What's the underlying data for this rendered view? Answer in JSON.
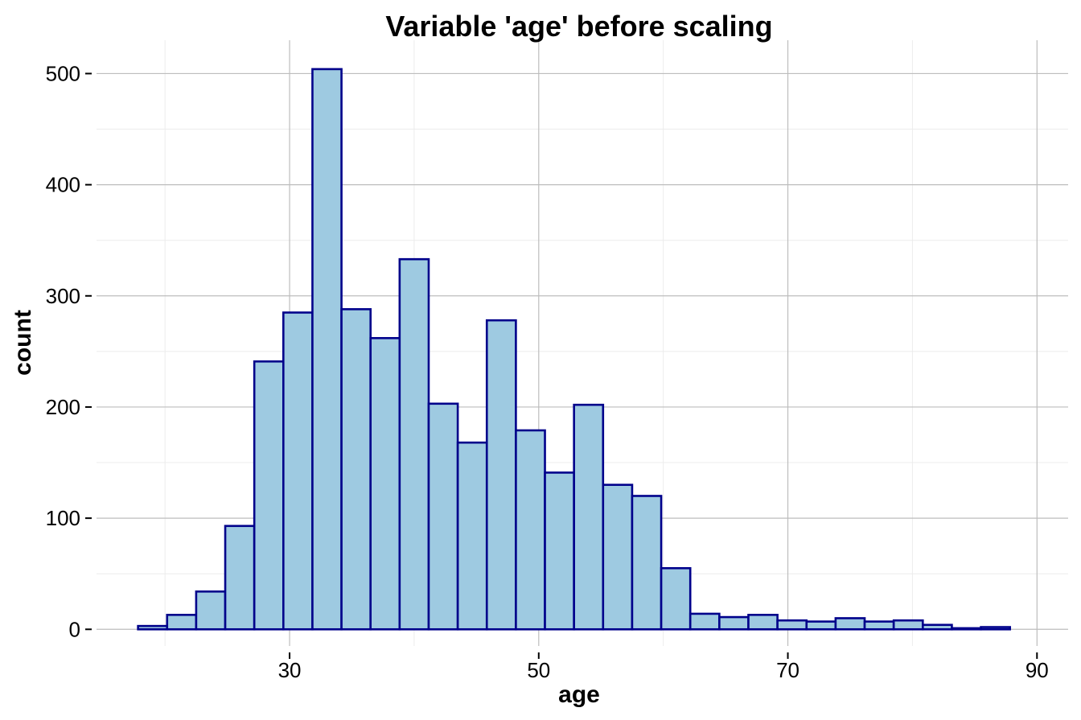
{
  "colors": {
    "bar_fill": "#9ecae1",
    "bar_stroke": "#00008b",
    "grid_major": "#bdbdbd",
    "grid_minor": "#ececec",
    "background": "#ffffff"
  },
  "chart_data": {
    "type": "bar",
    "title": "Variable 'age' before scaling",
    "xlabel": "age",
    "ylabel": "count",
    "xlim": [
      14.5,
      92.5
    ],
    "ylim": [
      -15,
      530
    ],
    "x_major_ticks": [
      30,
      50,
      70,
      90
    ],
    "x_minor_ticks": [
      20,
      40,
      60,
      80
    ],
    "y_major_ticks": [
      0,
      100,
      200,
      300,
      400,
      500
    ],
    "y_minor_ticks": [
      50,
      150,
      250,
      350,
      450
    ],
    "x_tick_labels": [
      "30",
      "50",
      "70",
      "90"
    ],
    "y_tick_labels": [
      "0",
      "100",
      "200",
      "300",
      "400",
      "500"
    ],
    "bin_width": 2.3333,
    "bin_start": 17.8333,
    "counts": [
      3,
      13,
      34,
      93,
      241,
      285,
      504,
      288,
      262,
      333,
      203,
      168,
      278,
      179,
      141,
      202,
      130,
      120,
      55,
      14,
      11,
      13,
      8,
      7,
      10,
      7,
      8,
      4,
      1,
      2
    ],
    "grid": true,
    "legend": "none"
  }
}
